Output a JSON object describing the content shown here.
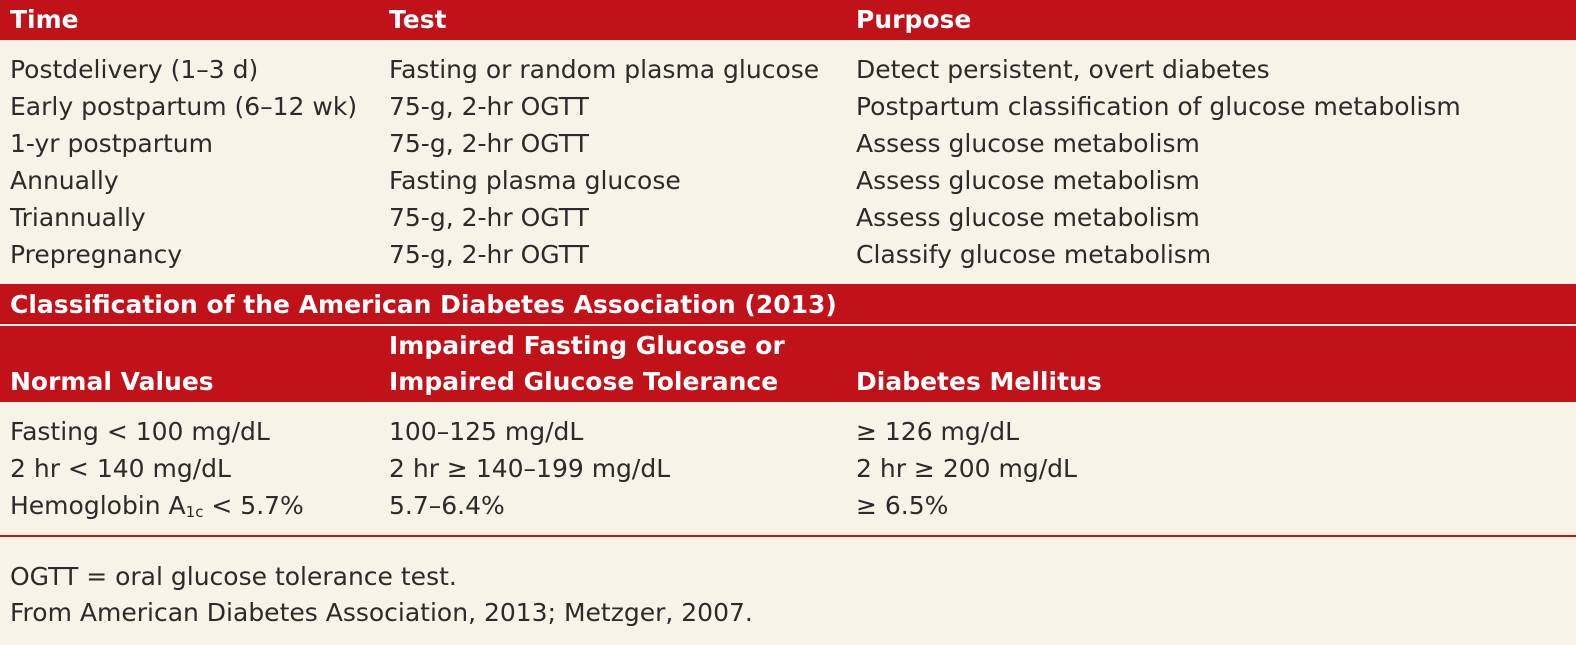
{
  "colors": {
    "header_bg": "#c1121a",
    "body_bg": "#f8f3e7",
    "header_text": "#ffffff",
    "body_text": "#2b2b2b"
  },
  "table1": {
    "headers": [
      "Time",
      "Test",
      "Purpose"
    ],
    "rows": [
      [
        "Postdelivery (1–3 d)",
        "Fasting or random plasma glucose",
        "Detect persistent, overt diabetes"
      ],
      [
        "Early postpartum (6–12 wk)",
        "75-g, 2-hr OGTT",
        "Postpartum classification of glucose metabolism"
      ],
      [
        "1-yr postpartum",
        "75-g, 2-hr OGTT",
        "Assess glucose metabolism"
      ],
      [
        "Annually",
        "Fasting plasma glucose",
        "Assess glucose metabolism"
      ],
      [
        "Triannually",
        "75-g, 2-hr OGTT",
        "Assess glucose metabolism"
      ],
      [
        "Prepregnancy",
        "75-g, 2-hr OGTT",
        "Classify glucose metabolism"
      ]
    ]
  },
  "section2": {
    "title": "Classification of the American Diabetes Association (2013)",
    "headers": {
      "col1": "Normal Values",
      "col2_line1": "Impaired Fasting Glucose or",
      "col2_line2": "Impaired Glucose Tolerance",
      "col3": "Diabetes Mellitus"
    },
    "rows": [
      [
        "Fasting < 100 mg/dL",
        "100–125 mg/dL",
        "≥ 126 mg/dL"
      ],
      [
        "2 hr < 140 mg/dL",
        "2 hr ≥ 140–199 mg/dL",
        "2 hr ≥ 200 mg/dL"
      ]
    ],
    "hba1c_row": {
      "label_prefix": "Hemoglobin A",
      "label_sub": "1c",
      "label_suffix": " < 5.7%",
      "col2": "5.7–6.4%",
      "col3": "≥ 6.5%"
    }
  },
  "footnotes": [
    "OGTT = oral glucose tolerance test.",
    "From American Diabetes Association, 2013; Metzger, 2007."
  ]
}
